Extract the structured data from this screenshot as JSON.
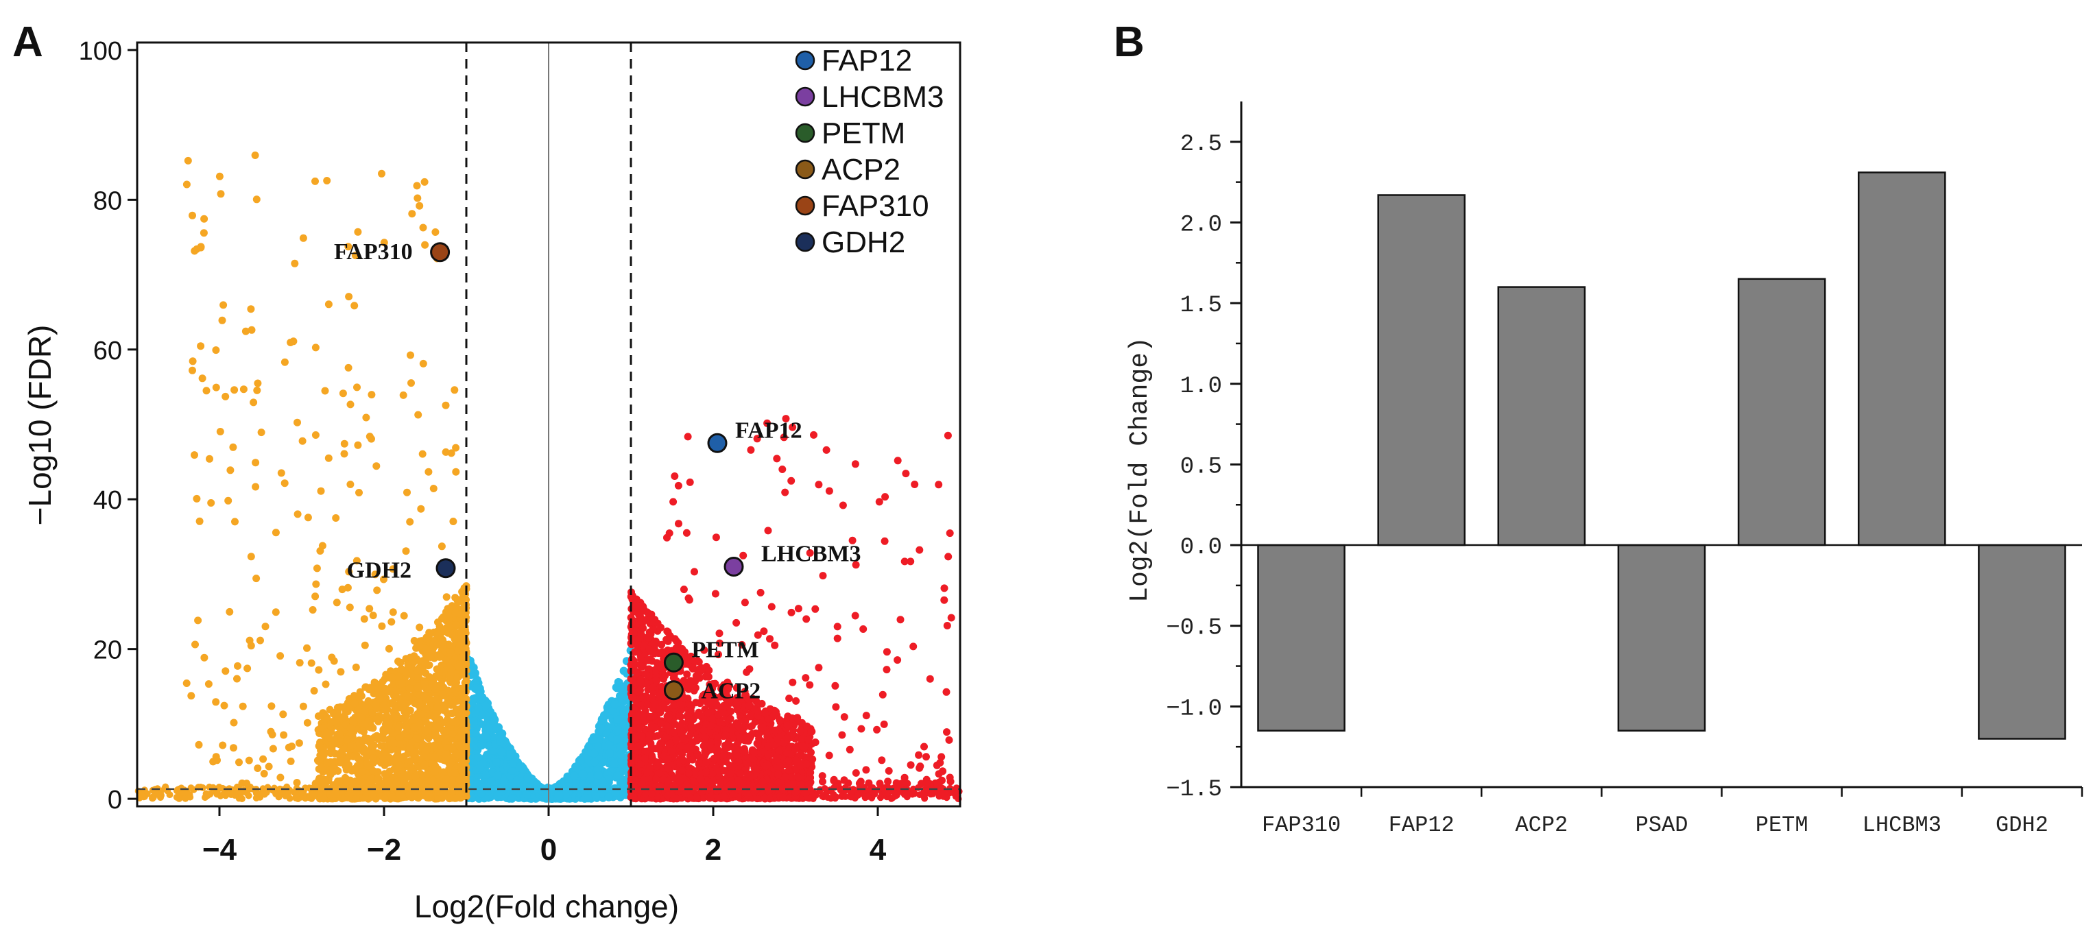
{
  "chart_data": [
    {
      "panel_label": "A",
      "type": "scatter",
      "title": "",
      "xlabel": "Log2(Fold change)",
      "ylabel": "−Log10 (FDR)",
      "xlim": [
        -5,
        5
      ],
      "ylim": [
        -1,
        101
      ],
      "xticks": [
        -4,
        -2,
        0,
        2,
        4
      ],
      "xtick_labels": [
        "−4",
        "−2",
        "0",
        "2",
        "4"
      ],
      "yticks": [
        0,
        20,
        40,
        60,
        80,
        100
      ],
      "ytick_labels": [
        "0",
        "20",
        "40",
        "60",
        "80",
        "100"
      ],
      "fc_thresholds": [
        -1,
        1
      ],
      "fdr_threshold": 1.3,
      "group_colors": {
        "down": "#f5a623",
        "ns": "#2bbce8",
        "up": "#ee1c25"
      },
      "highlights": [
        {
          "name": "FAP12",
          "x": 2.05,
          "y": 47.5,
          "color": "#1f5fa8"
        },
        {
          "name": "LHCBM3",
          "x": 2.25,
          "y": 31.0,
          "color": "#7b3fa0"
        },
        {
          "name": "PETM",
          "x": 1.52,
          "y": 18.2,
          "color": "#2a5c2a"
        },
        {
          "name": "ACP2",
          "x": 1.52,
          "y": 14.5,
          "color": "#8b5a18"
        },
        {
          "name": "FAP310",
          "x": -1.32,
          "y": 73.0,
          "color": "#9a4416"
        },
        {
          "name": "GDH2",
          "x": -1.25,
          "y": 30.8,
          "color": "#1b2f5a"
        }
      ],
      "legend_position": "top-right"
    },
    {
      "panel_label": "B",
      "type": "bar",
      "title": "",
      "xlabel": "",
      "ylabel": "Log2(Fold Change)",
      "ylim": [
        -1.5,
        2.75
      ],
      "yticks": [
        -1.5,
        -1.0,
        -0.5,
        0.0,
        0.5,
        1.0,
        1.5,
        2.0,
        2.5
      ],
      "ytick_labels": [
        "−1.5",
        "−1.0",
        "−0.5",
        "0.0",
        "0.5",
        "1.0",
        "1.5",
        "2.0",
        "2.5"
      ],
      "categories": [
        "FAP310",
        "FAP12",
        "ACP2",
        "PSAD",
        "PETM",
        "LHCBM3",
        "GDH2"
      ],
      "values": [
        -1.15,
        2.17,
        1.6,
        -1.15,
        1.65,
        2.31,
        -1.2
      ],
      "bar_color": "#7f7f7f"
    }
  ]
}
